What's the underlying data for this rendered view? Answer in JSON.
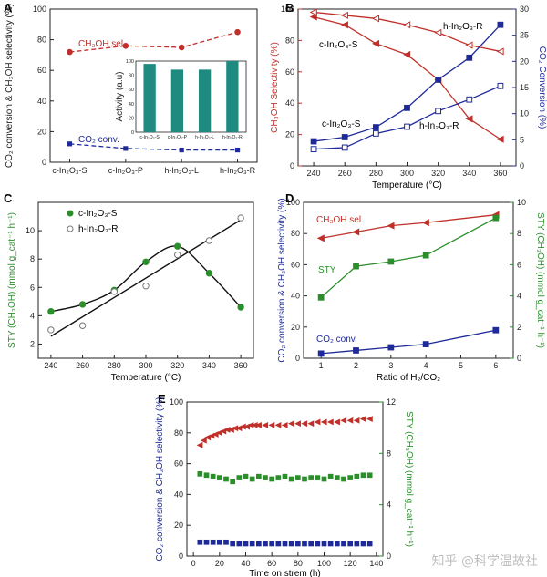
{
  "watermark": "知乎 @科学温故社",
  "colors": {
    "red": "#c0302a",
    "blue": "#1e2a9a",
    "green": "#2a8f2a",
    "teal": "#1f8a80",
    "darkred": "#a01818"
  },
  "chart_data": [
    {
      "id": "A",
      "panel_label": "A",
      "type": "line",
      "categories": [
        "c-In2O3-S",
        "c-In2O3-P",
        "h-In2O3-L",
        "h-In2O3-R"
      ],
      "category_labels": [
        "c-In₂O₃-S",
        "c-In₂O₃-P",
        "h-In₂O₃-L",
        "h-In₂O₃-R"
      ],
      "ylabel": "CO₂ conversion & CH₃OH selectivity (%)",
      "ylim": [
        0,
        100
      ],
      "yticks": [
        "0",
        "20",
        "40",
        "60",
        "80",
        "100"
      ],
      "series": [
        {
          "name": "CH₃OH sel.",
          "values": [
            72,
            76,
            75,
            85
          ],
          "color": "#c0302a"
        },
        {
          "name": "CO₂ conv.",
          "values": [
            12,
            9,
            8,
            8
          ],
          "color": "#1e2a9a"
        }
      ],
      "inset": {
        "type": "bar",
        "ylabel": "Activity (a.u)",
        "ylim": [
          0,
          100
        ],
        "yticks": [
          "0",
          "20",
          "40",
          "60",
          "80",
          "100"
        ],
        "categories": [
          "c-In₂O₃-S",
          "c-In₂O₃-P",
          "h-In₂O₃-L",
          "h-In₂O₃-R"
        ],
        "values": [
          96,
          88,
          88,
          100
        ],
        "color": "#1f8a80"
      }
    },
    {
      "id": "B",
      "panel_label": "B",
      "type": "line",
      "x": [
        240,
        260,
        280,
        300,
        320,
        340,
        360
      ],
      "xticks": [
        "240",
        "260",
        "280",
        "300",
        "320",
        "340",
        "360"
      ],
      "xlabel": "Temperature (°C)",
      "ylabel_left": "CH₃OH Selectivity (%)",
      "ylim_left": [
        0,
        100
      ],
      "yticks_left": [
        "0",
        "20",
        "40",
        "60",
        "80",
        "100"
      ],
      "ylabel_right": "CO₂ Conversion (%)",
      "ylim_right": [
        0,
        30
      ],
      "yticks_right": [
        "0",
        "5",
        "10",
        "15",
        "20",
        "25",
        "30"
      ],
      "series": [
        {
          "label": "c-In₂O₃-S",
          "axis": "left",
          "values": [
            95,
            90,
            78,
            71,
            55,
            30,
            17
          ],
          "color": "#c0302a",
          "marker": "filled-tri"
        },
        {
          "label": "h-In₂O₃-R",
          "axis": "left",
          "values": [
            98,
            96,
            94,
            90,
            85,
            77,
            73
          ],
          "color": "#c0302a",
          "marker": "open-tri"
        },
        {
          "label": "c-In₂O₃-S",
          "axis": "right",
          "values": [
            4.7,
            5.5,
            7.4,
            11.1,
            16.5,
            20.7,
            27
          ],
          "color": "#1e2a9a",
          "marker": "filled-sq"
        },
        {
          "label": "h-In₂O₃-R",
          "axis": "right",
          "values": [
            3.2,
            3.5,
            6.2,
            7.5,
            10.5,
            12.7,
            15.3
          ],
          "color": "#1e2a9a",
          "marker": "open-sq"
        }
      ],
      "annotations": [
        "c-In₂O₃-S",
        "h-In₂O₃-R",
        "c-In₂O₃-S",
        "h-In₂O₃-R"
      ]
    },
    {
      "id": "C",
      "panel_label": "C",
      "type": "scatter",
      "x": [
        240,
        260,
        280,
        300,
        320,
        340,
        360
      ],
      "xticks": [
        "240",
        "260",
        "280",
        "300",
        "320",
        "340",
        "360"
      ],
      "xlabel": "Temperature (°C)",
      "ylabel": "STY (CH₃OH) (mmol g_cat⁻¹ h⁻¹)",
      "ylim": [
        1,
        12
      ],
      "yticks": [
        "2",
        "4",
        "6",
        "8",
        "10"
      ],
      "series": [
        {
          "name": "c-In₂O₃-S",
          "values": [
            4.3,
            4.8,
            5.8,
            7.8,
            8.9,
            7.0,
            4.6
          ],
          "color": "#2a8f2a",
          "marker": "filled-circle"
        },
        {
          "name": "h-In₂O₃-R",
          "values": [
            3.0,
            3.3,
            5.7,
            6.1,
            8.3,
            9.3,
            10.9
          ],
          "color": "#777777",
          "marker": "open-circle"
        }
      ]
    },
    {
      "id": "D",
      "panel_label": "D",
      "type": "line",
      "x": [
        1,
        2,
        3,
        4,
        6
      ],
      "xlim": [
        0.5,
        6.5
      ],
      "xticks": [
        "1",
        "2",
        "3",
        "4",
        "5",
        "6"
      ],
      "xlabel": "Ratio of H₂/CO₂",
      "ylabel_left": "CO₂ conversion & CH₃OH selectivity (%)",
      "ylim_left": [
        0,
        100
      ],
      "yticks_left": [
        "0",
        "20",
        "40",
        "60",
        "80",
        "100"
      ],
      "ylabel_right": "STY (CH₃OH) (mmol g_cat⁻¹ h⁻¹)",
      "ylim_right": [
        0,
        10
      ],
      "yticks_right": [
        "0",
        "2",
        "4",
        "6",
        "8",
        "10"
      ],
      "series": [
        {
          "name": "CH₃OH sel.",
          "axis": "left",
          "values": [
            77,
            81,
            85,
            87,
            92
          ],
          "color": "#c0302a",
          "marker": "filled-tri"
        },
        {
          "name": "STY",
          "axis": "right",
          "values": [
            3.9,
            5.9,
            6.2,
            6.6,
            9.0
          ],
          "color": "#2a8f2a",
          "marker": "filled-sq"
        },
        {
          "name": "CO₂ conv.",
          "axis": "left",
          "values": [
            3,
            5,
            7,
            9,
            18
          ],
          "color": "#1e2a9a",
          "marker": "filled-sq"
        }
      ]
    },
    {
      "id": "E",
      "panel_label": "E",
      "type": "line",
      "xlabel": "Time on strem (h)",
      "xlim": [
        -5,
        145
      ],
      "xticks": [
        "0",
        "20",
        "40",
        "60",
        "80",
        "100",
        "120",
        "140"
      ],
      "ylabel_left": "CO₂ conversion & CH₃OH selectivity (%)",
      "ylim_left": [
        0,
        100
      ],
      "yticks_left": [
        "0",
        "20",
        "40",
        "60",
        "80",
        "100"
      ],
      "ylabel_right": "STY (CH₃OH) (mmol g_cat⁻¹ h⁻¹)",
      "ylim_right": [
        0,
        12
      ],
      "yticks_right": [
        "0",
        "4",
        "8",
        "12"
      ],
      "series": [
        {
          "name": "CH₃OH selectivity",
          "axis": "left",
          "color": "#c0302a",
          "marker": "filled-tri",
          "x": [
            5,
            8,
            11,
            14,
            17,
            20,
            23,
            26,
            29,
            32,
            35,
            38,
            41,
            44,
            47,
            50,
            55,
            60,
            65,
            70,
            75,
            80,
            85,
            90,
            95,
            100,
            105,
            110,
            115,
            120,
            125,
            130,
            135
          ],
          "values": [
            72,
            75,
            77,
            78,
            79,
            80,
            81,
            82,
            82,
            83,
            83,
            84,
            84,
            85,
            85,
            85,
            85,
            85,
            85,
            85,
            86,
            86,
            86,
            86,
            87,
            87,
            87,
            87,
            88,
            88,
            88,
            89,
            89
          ]
        },
        {
          "name": "STY",
          "axis": "right",
          "color": "#2a8f2a",
          "marker": "filled-sq",
          "x": [
            5,
            10,
            15,
            20,
            25,
            30,
            35,
            40,
            45,
            50,
            55,
            60,
            65,
            70,
            75,
            80,
            85,
            90,
            95,
            100,
            105,
            110,
            115,
            120,
            125,
            130,
            135
          ],
          "values": [
            6.4,
            6.3,
            6.2,
            6.1,
            6.0,
            5.8,
            6.1,
            6.2,
            6.0,
            6.2,
            6.1,
            6.0,
            6.1,
            6.2,
            6.0,
            6.1,
            6.0,
            6.1,
            6.1,
            6.0,
            6.2,
            6.1,
            6.0,
            6.1,
            6.2,
            6.3,
            6.3
          ]
        },
        {
          "name": "CO₂ conversion",
          "axis": "left",
          "color": "#1e2a9a",
          "marker": "filled-sq",
          "x": [
            5,
            10,
            15,
            20,
            25,
            30,
            35,
            40,
            45,
            50,
            55,
            60,
            65,
            70,
            75,
            80,
            85,
            90,
            95,
            100,
            105,
            110,
            115,
            120,
            125,
            130,
            135
          ],
          "values": [
            9,
            9,
            9,
            9,
            9,
            8,
            8,
            8,
            8,
            8,
            8,
            8,
            8,
            8,
            8,
            8,
            8,
            8,
            8,
            8,
            8,
            8,
            8,
            8,
            8,
            8,
            8
          ]
        }
      ]
    }
  ]
}
